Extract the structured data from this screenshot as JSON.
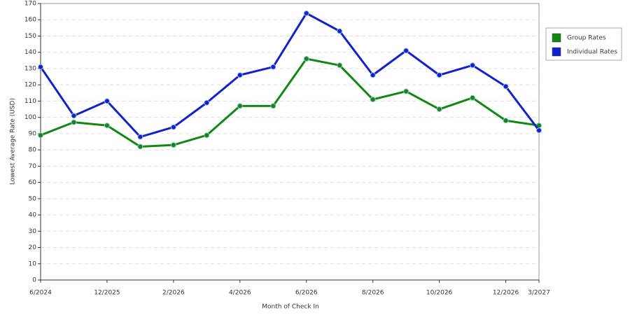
{
  "chart_data": {
    "type": "line",
    "xlabel": "Month of Check In",
    "ylabel": "Lowest Average Rate (USD)",
    "categories": [
      "6/2024",
      null,
      "12/2025",
      null,
      "2/2026",
      null,
      "4/2026",
      null,
      "6/2026",
      null,
      "8/2026",
      null,
      "10/2026",
      null,
      "12/2026",
      "3/2027"
    ],
    "series": [
      {
        "name": "Group Rates",
        "color": "#118811",
        "values": [
          89,
          97,
          95,
          82,
          83,
          89,
          107,
          107,
          136,
          132,
          111,
          116,
          105,
          112,
          98,
          95
        ]
      },
      {
        "name": "Individual Rates",
        "color": "#1122cc",
        "values": [
          131,
          101,
          110,
          88,
          94,
          109,
          126,
          131,
          164,
          153,
          126,
          141,
          126,
          132,
          119,
          92
        ]
      }
    ],
    "ylim": [
      0,
      170
    ],
    "yticks": [
      0,
      10,
      20,
      30,
      40,
      50,
      60,
      70,
      80,
      90,
      100,
      110,
      120,
      130,
      140,
      150,
      160,
      170
    ],
    "grid": true,
    "legend": "right"
  }
}
